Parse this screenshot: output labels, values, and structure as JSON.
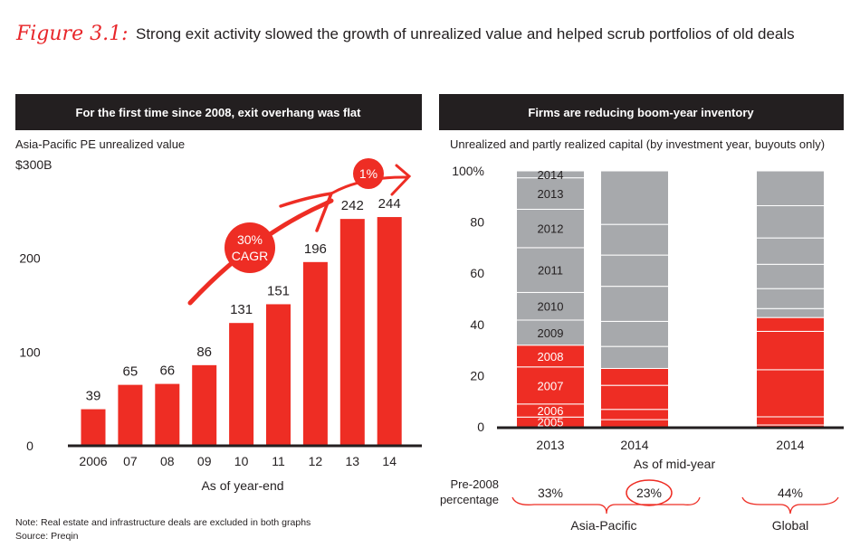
{
  "figure_label": "Figure 3.1:",
  "title": "Strong exit activity slowed the growth of unrealized value and helped scrub portfolios of old deals",
  "colors": {
    "red": "#ee2d24",
    "gray": "#a7a9ac",
    "dark": "#231f20"
  },
  "chart_data": [
    {
      "type": "bar",
      "header": "For the first time since 2008, exit overhang was flat",
      "ylabel": "Asia-Pacific PE unrealized value",
      "xlabel": "As of year-end",
      "categories": [
        "2006",
        "07",
        "08",
        "09",
        "10",
        "11",
        "12",
        "13",
        "14"
      ],
      "values": [
        39,
        65,
        66,
        86,
        131,
        151,
        196,
        242,
        244
      ],
      "data_labels": [
        "39",
        "65",
        "66",
        "86",
        "131",
        "151",
        "196",
        "242",
        "244"
      ],
      "ylim": [
        0,
        300
      ],
      "yticks": [
        "0",
        "100",
        "200",
        "$300B"
      ],
      "grid": false,
      "annotations": {
        "cagr_line1": "30%",
        "cagr_line2": "CAGR",
        "flat": "1%"
      }
    },
    {
      "type": "bar",
      "stacked": true,
      "header": "Firms are reducing boom-year inventory",
      "ylabel": "Unrealized and partly realized capital (by investment year, buyouts only)",
      "xlabel": "As of mid-year",
      "ylim": [
        0,
        100
      ],
      "yticks": [
        "0",
        "20",
        "40",
        "60",
        "80",
        "100%"
      ],
      "grid": false,
      "bars": [
        {
          "label": "2013",
          "segments": [
            {
              "year": "2005",
              "value": 3.8,
              "pre2008": true
            },
            {
              "year": "2006",
              "value": 5.1,
              "pre2008": true
            },
            {
              "year": "2007",
              "value": 14.5,
              "pre2008": true
            },
            {
              "year": "2008",
              "value": 8.5,
              "pre2008": true
            },
            {
              "year": "2009",
              "value": 9.8,
              "pre2008": false
            },
            {
              "year": "2010",
              "value": 10.8,
              "pre2008": false
            },
            {
              "year": "2011",
              "value": 17.5,
              "pre2008": false
            },
            {
              "year": "2012",
              "value": 15.0,
              "pre2008": false
            },
            {
              "year": "2013",
              "value": 12.3,
              "pre2008": false
            },
            {
              "year": "2014",
              "value": 2.7,
              "pre2008": false
            }
          ]
        },
        {
          "label": "2014",
          "segments": [
            {
              "value": 2.8,
              "pre2008": true
            },
            {
              "value": 4.0,
              "pre2008": true
            },
            {
              "value": 9.4,
              "pre2008": true
            },
            {
              "value": 6.6,
              "pre2008": true
            },
            {
              "value": 8.6,
              "pre2008": false
            },
            {
              "value": 9.8,
              "pre2008": false
            },
            {
              "value": 13.7,
              "pre2008": false
            },
            {
              "value": 12.2,
              "pre2008": false
            },
            {
              "value": 12.0,
              "pre2008": false
            },
            {
              "value": 20.9,
              "pre2008": false
            }
          ]
        },
        {
          "label": "2014",
          "segments": [
            {
              "value": 0.7,
              "pre2008": true
            },
            {
              "value": 3.2,
              "pre2008": true
            },
            {
              "value": 18.4,
              "pre2008": true
            },
            {
              "value": 15.0,
              "pre2008": true
            },
            {
              "value": 5.4,
              "pre2008": true
            },
            {
              "value": 3.5,
              "pre2008": false
            },
            {
              "value": 7.8,
              "pre2008": false
            },
            {
              "value": 9.5,
              "pre2008": false
            },
            {
              "value": 10.3,
              "pre2008": false
            },
            {
              "value": 12.6,
              "pre2008": false
            },
            {
              "value": 13.6,
              "pre2008": false
            }
          ]
        }
      ],
      "pre2008": {
        "label_line1": "Pre-2008",
        "label_line2": "percentage",
        "values": [
          "33%",
          "23%",
          "44%"
        ],
        "groups": [
          "Asia-Pacific",
          "Global"
        ]
      }
    }
  ],
  "footer": {
    "note": "Note: Real estate and infrastructure deals are excluded in both graphs",
    "source": "Source: Preqin"
  }
}
